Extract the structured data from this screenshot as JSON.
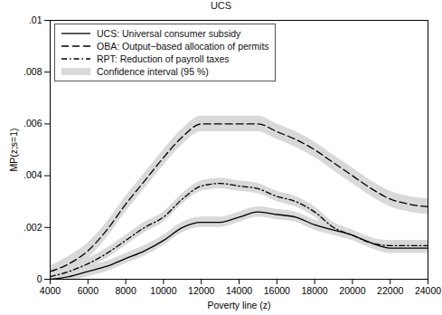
{
  "chart_data": {
    "type": "line",
    "title": "UCS",
    "x_label": "Poverty line (z)",
    "y_label": "MP(z;s=1)",
    "x": [
      4000,
      5000,
      6000,
      7000,
      8000,
      9000,
      10000,
      11000,
      12000,
      13000,
      14000,
      15000,
      16000,
      17000,
      18000,
      19000,
      20000,
      21000,
      22000,
      23000,
      24000
    ],
    "series": [
      {
        "name": "UCS: Universal consumer subsidy",
        "color": "#000000",
        "line_style": "solid",
        "values": [
          0.0,
          0.0001,
          0.0003,
          0.0005,
          0.0008,
          0.0011,
          0.0015,
          0.002,
          0.0022,
          0.0022,
          0.0024,
          0.0026,
          0.0025,
          0.0024,
          0.0021,
          0.0019,
          0.0017,
          0.0014,
          0.0012,
          0.0012,
          0.0012
        ],
        "lower": [
          -0.0002,
          -0.0001,
          0.0001,
          0.0003,
          0.0006,
          0.0009,
          0.0013,
          0.0018,
          0.002,
          0.002,
          0.0022,
          0.0024,
          0.0023,
          0.0022,
          0.0019,
          0.0017,
          0.0015,
          0.0012,
          0.001,
          0.001,
          0.001
        ],
        "upper": [
          0.0002,
          0.0003,
          0.0005,
          0.0007,
          0.001,
          0.0013,
          0.0017,
          0.0022,
          0.0024,
          0.0024,
          0.0026,
          0.0028,
          0.0027,
          0.0026,
          0.0023,
          0.0021,
          0.0019,
          0.0016,
          0.0014,
          0.0014,
          0.0014
        ]
      },
      {
        "name": "OBA: Output−based allocation of permits",
        "color": "#000000",
        "line_style": "dashed",
        "values": [
          0.0003,
          0.0006,
          0.0011,
          0.0019,
          0.0029,
          0.0038,
          0.0047,
          0.0055,
          0.006,
          0.006,
          0.006,
          0.006,
          0.0057,
          0.0054,
          0.005,
          0.0045,
          0.004,
          0.0035,
          0.0031,
          0.0029,
          0.0028
        ],
        "lower": [
          0.0001,
          0.0003,
          0.0008,
          0.0016,
          0.0026,
          0.0035,
          0.0044,
          0.0052,
          0.0057,
          0.0057,
          0.0057,
          0.0057,
          0.0054,
          0.0051,
          0.0047,
          0.0042,
          0.0037,
          0.0032,
          0.0028,
          0.0026,
          0.0025
        ],
        "upper": [
          0.0005,
          0.0009,
          0.0014,
          0.0022,
          0.0032,
          0.0041,
          0.005,
          0.0058,
          0.0063,
          0.0063,
          0.0063,
          0.0063,
          0.006,
          0.0057,
          0.0053,
          0.0048,
          0.0043,
          0.0038,
          0.0034,
          0.0032,
          0.0031
        ]
      },
      {
        "name": "RPT: Reduction of payroll taxes",
        "color": "#000000",
        "line_style": "dashdot",
        "values": [
          0.0001,
          0.0003,
          0.0006,
          0.001,
          0.0015,
          0.002,
          0.0024,
          0.0031,
          0.0036,
          0.0037,
          0.0036,
          0.0035,
          0.0032,
          0.003,
          0.0026,
          0.002,
          0.0017,
          0.0014,
          0.0013,
          0.0013,
          0.0013
        ],
        "lower": [
          -0.0001,
          0.0001,
          0.0004,
          0.0008,
          0.0013,
          0.0018,
          0.0022,
          0.0029,
          0.0034,
          0.0035,
          0.0034,
          0.0033,
          0.003,
          0.0028,
          0.0024,
          0.0018,
          0.0015,
          0.0012,
          0.0011,
          0.0011,
          0.0011
        ],
        "upper": [
          0.0003,
          0.0005,
          0.0008,
          0.0012,
          0.0017,
          0.0022,
          0.0026,
          0.0033,
          0.0038,
          0.0039,
          0.0038,
          0.0037,
          0.0034,
          0.0032,
          0.0028,
          0.0022,
          0.0019,
          0.0016,
          0.0015,
          0.0015,
          0.0015
        ]
      }
    ],
    "interval_label": "Confidence interval (95 %)",
    "xlim": [
      4000,
      24000
    ],
    "xticks": [
      4000,
      6000,
      8000,
      10000,
      12000,
      14000,
      16000,
      18000,
      20000,
      22000,
      24000
    ],
    "ylim": [
      0,
      0.01
    ],
    "yticks": [
      0,
      {
        "value": 0.002,
        "label": ".002"
      },
      {
        "value": 0.004,
        "label": ".004"
      },
      {
        "value": 0.006,
        "label": ".006"
      },
      {
        "value": 0.008,
        "label": ".008"
      },
      {
        "value": 0.01,
        "label": ".01"
      }
    ],
    "grid": false,
    "legend": "top-left"
  }
}
